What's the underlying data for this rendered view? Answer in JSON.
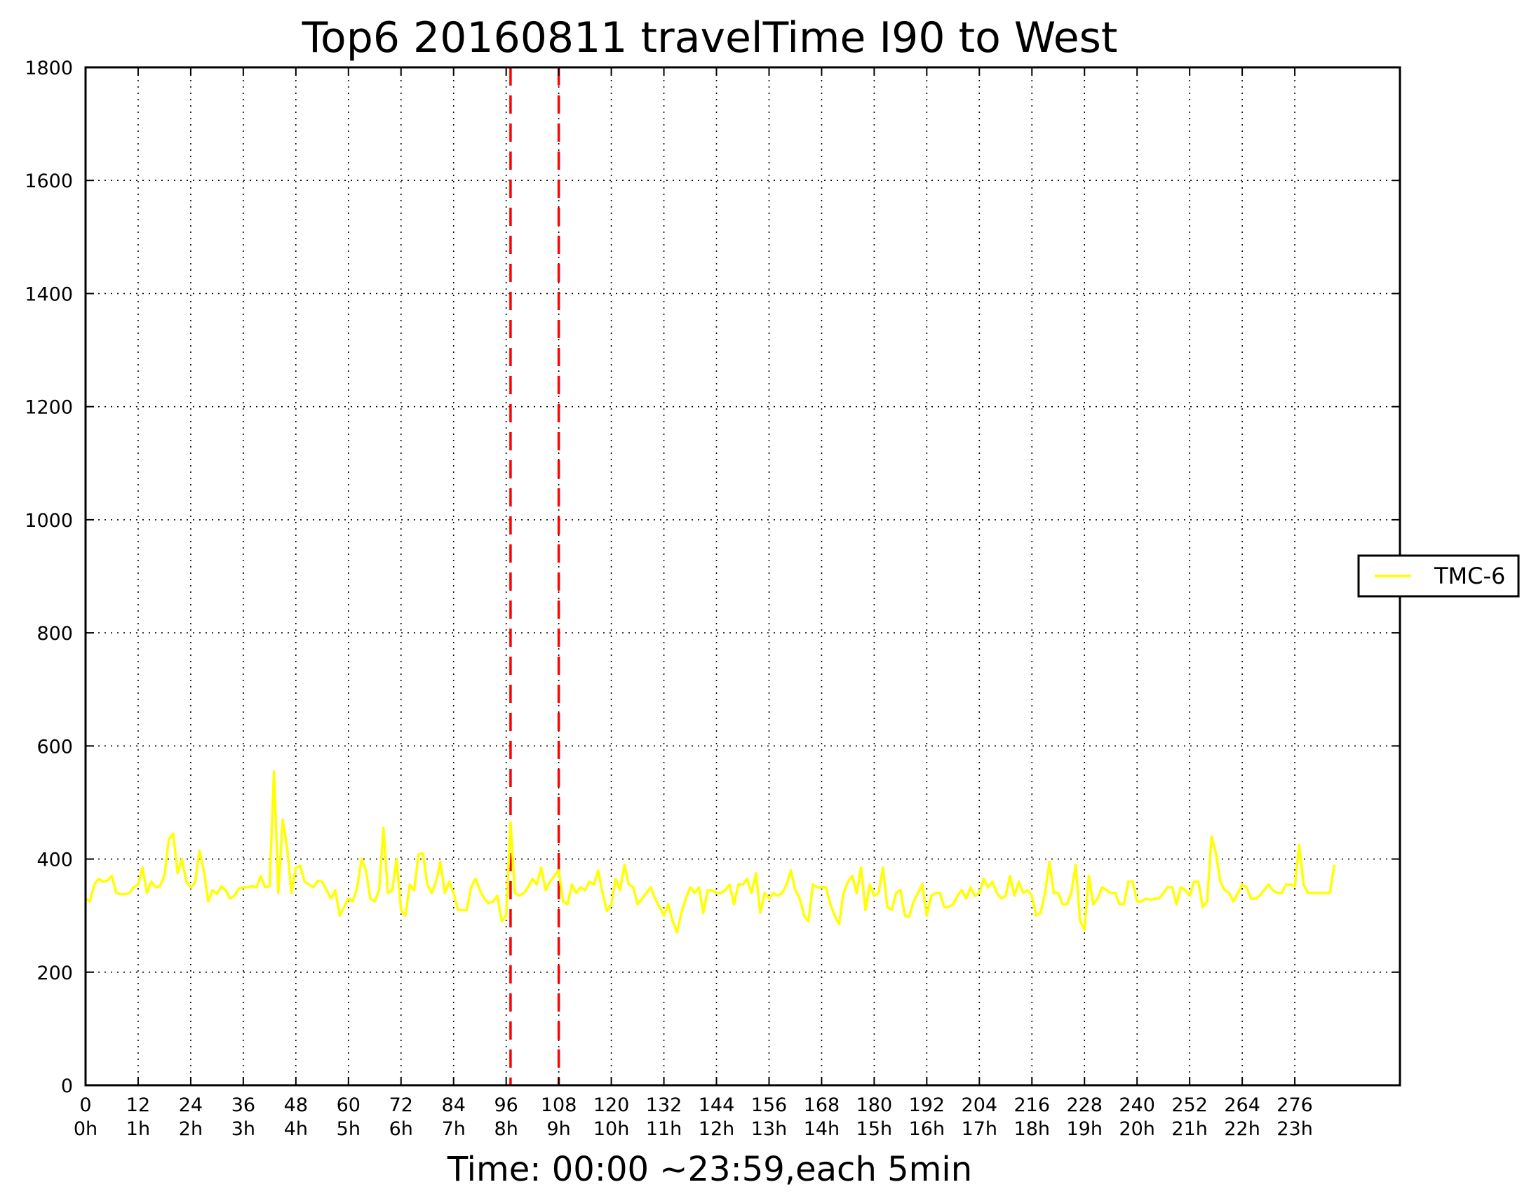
{
  "chart_data": {
    "type": "line",
    "title": "Top6 20160811 travelTime I90 to West",
    "xlabel": "Time: 00:00 ~23:59,each 5min",
    "ylabel": "",
    "xlim": [
      0,
      300
    ],
    "ylim": [
      0,
      1800
    ],
    "grid": true,
    "legend_position": "right",
    "x_ticks": [
      {
        "value": 0,
        "label": "0",
        "hour": "0h"
      },
      {
        "value": 12,
        "label": "12",
        "hour": "1h"
      },
      {
        "value": 24,
        "label": "24",
        "hour": "2h"
      },
      {
        "value": 36,
        "label": "36",
        "hour": "3h"
      },
      {
        "value": 48,
        "label": "48",
        "hour": "4h"
      },
      {
        "value": 60,
        "label": "60",
        "hour": "5h"
      },
      {
        "value": 72,
        "label": "72",
        "hour": "6h"
      },
      {
        "value": 84,
        "label": "84",
        "hour": "7h"
      },
      {
        "value": 96,
        "label": "96",
        "hour": "8h"
      },
      {
        "value": 108,
        "label": "108",
        "hour": "9h"
      },
      {
        "value": 120,
        "label": "120",
        "hour": "10h"
      },
      {
        "value": 132,
        "label": "132",
        "hour": "11h"
      },
      {
        "value": 144,
        "label": "144",
        "hour": "12h"
      },
      {
        "value": 156,
        "label": "156",
        "hour": "13h"
      },
      {
        "value": 168,
        "label": "168",
        "hour": "14h"
      },
      {
        "value": 180,
        "label": "180",
        "hour": "15h"
      },
      {
        "value": 192,
        "label": "192",
        "hour": "16h"
      },
      {
        "value": 204,
        "label": "204",
        "hour": "17h"
      },
      {
        "value": 216,
        "label": "216",
        "hour": "18h"
      },
      {
        "value": 228,
        "label": "228",
        "hour": "19h"
      },
      {
        "value": 240,
        "label": "240",
        "hour": "20h"
      },
      {
        "value": 252,
        "label": "252",
        "hour": "21h"
      },
      {
        "value": 264,
        "label": "264",
        "hour": "22h"
      },
      {
        "value": 276,
        "label": "276",
        "hour": "23h"
      }
    ],
    "y_ticks": [
      {
        "value": 0,
        "label": "0"
      },
      {
        "value": 200,
        "label": "200"
      },
      {
        "value": 400,
        "label": "400"
      },
      {
        "value": 600,
        "label": "600"
      },
      {
        "value": 800,
        "label": "800"
      },
      {
        "value": 1000,
        "label": "1000"
      },
      {
        "value": 1200,
        "label": "1200"
      },
      {
        "value": 1400,
        "label": "1400"
      },
      {
        "value": 1600,
        "label": "1600"
      },
      {
        "value": 1800,
        "label": "1800"
      }
    ],
    "vertical_markers": [
      {
        "x": 97,
        "color": "#ff0000",
        "style": "dashed"
      },
      {
        "x": 108,
        "color": "#ff0000",
        "style": "dashed"
      }
    ],
    "series": [
      {
        "name": "TMC-6",
        "color": "#ffff00",
        "x_start": 0,
        "x_step": 1,
        "values": [
          330,
          325,
          355,
          365,
          360,
          362,
          370,
          340,
          338,
          338,
          340,
          350,
          355,
          385,
          340,
          360,
          350,
          352,
          370,
          435,
          445,
          375,
          400,
          360,
          350,
          358,
          415,
          380,
          325,
          345,
          338,
          352,
          345,
          330,
          335,
          348,
          350,
          350,
          352,
          350,
          370,
          350,
          352,
          555,
          340,
          470,
          420,
          340,
          385,
          388,
          360,
          355,
          350,
          362,
          360,
          345,
          330,
          345,
          300,
          315,
          330,
          325,
          350,
          400,
          380,
          330,
          325,
          345,
          455,
          340,
          345,
          400,
          310,
          300,
          355,
          345,
          408,
          410,
          355,
          340,
          360,
          395,
          340,
          360,
          340,
          310,
          310,
          310,
          350,
          365,
          345,
          330,
          322,
          325,
          335,
          290,
          300,
          465,
          340,
          335,
          340,
          350,
          365,
          355,
          385,
          345,
          360,
          370,
          380,
          325,
          320,
          355,
          340,
          350,
          345,
          360,
          355,
          380,
          340,
          308,
          320,
          365,
          345,
          390,
          355,
          350,
          320,
          330,
          340,
          350,
          330,
          315,
          300,
          320,
          290,
          270,
          305,
          330,
          350,
          340,
          350,
          305,
          345,
          345,
          340,
          340,
          345,
          355,
          320,
          355,
          355,
          365,
          340,
          375,
          305,
          340,
          330,
          340,
          335,
          340,
          355,
          380,
          345,
          330,
          300,
          290,
          355,
          350,
          350,
          350,
          320,
          300,
          285,
          340,
          360,
          370,
          340,
          385,
          310,
          355,
          335,
          340,
          385,
          315,
          310,
          340,
          345,
          300,
          298,
          325,
          340,
          355,
          300,
          335,
          340,
          340,
          315,
          315,
          320,
          335,
          345,
          330,
          350,
          335,
          340,
          365,
          350,
          360,
          340,
          330,
          335,
          370,
          335,
          360,
          340,
          345,
          335,
          300,
          305,
          340,
          395,
          340,
          340,
          320,
          320,
          340,
          390,
          290,
          275,
          370,
          320,
          330,
          350,
          345,
          340,
          340,
          320,
          320,
          360,
          360,
          325,
          325,
          330,
          328,
          330,
          330,
          340,
          350,
          350,
          320,
          350,
          345,
          335,
          360,
          360,
          315,
          325,
          440,
          410,
          360,
          345,
          340,
          325,
          340,
          355,
          350,
          330,
          330,
          335,
          345,
          355,
          345,
          340,
          340,
          355,
          355,
          352,
          425,
          355,
          340,
          340,
          340,
          340,
          340,
          340,
          390
        ]
      }
    ]
  }
}
